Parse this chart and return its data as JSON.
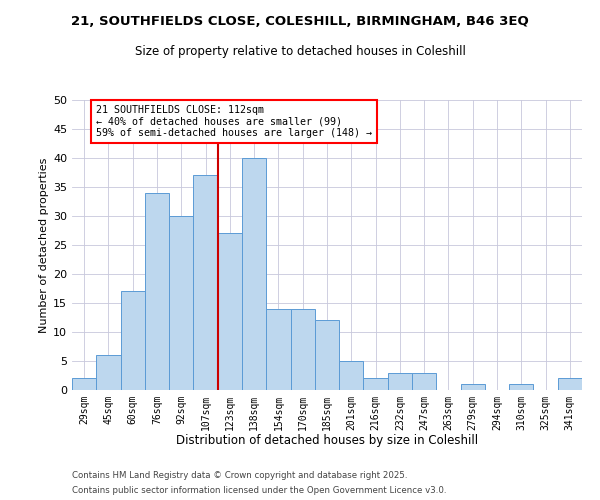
{
  "title_line1": "21, SOUTHFIELDS CLOSE, COLESHILL, BIRMINGHAM, B46 3EQ",
  "title_line2": "Size of property relative to detached houses in Coleshill",
  "xlabel": "Distribution of detached houses by size in Coleshill",
  "ylabel": "Number of detached properties",
  "bar_labels": [
    "29sqm",
    "45sqm",
    "60sqm",
    "76sqm",
    "92sqm",
    "107sqm",
    "123sqm",
    "138sqm",
    "154sqm",
    "170sqm",
    "185sqm",
    "201sqm",
    "216sqm",
    "232sqm",
    "247sqm",
    "263sqm",
    "279sqm",
    "294sqm",
    "310sqm",
    "325sqm",
    "341sqm"
  ],
  "bar_values": [
    2,
    6,
    17,
    34,
    30,
    37,
    27,
    40,
    14,
    14,
    12,
    5,
    2,
    3,
    3,
    0,
    1,
    0,
    1,
    0,
    2
  ],
  "bar_color": "#BDD7EE",
  "bar_edge_color": "#5B9BD5",
  "vline_x": 5.5,
  "vline_color": "#CC0000",
  "ylim": [
    0,
    50
  ],
  "yticks": [
    0,
    5,
    10,
    15,
    20,
    25,
    30,
    35,
    40,
    45,
    50
  ],
  "annotation_title": "21 SOUTHFIELDS CLOSE: 112sqm",
  "annotation_line2": "← 40% of detached houses are smaller (99)",
  "annotation_line3": "59% of semi-detached houses are larger (148) →",
  "footer_line1": "Contains HM Land Registry data © Crown copyright and database right 2025.",
  "footer_line2": "Contains public sector information licensed under the Open Government Licence v3.0.",
  "grid_color": "#C8C8DC",
  "background_color": "#FFFFFF"
}
